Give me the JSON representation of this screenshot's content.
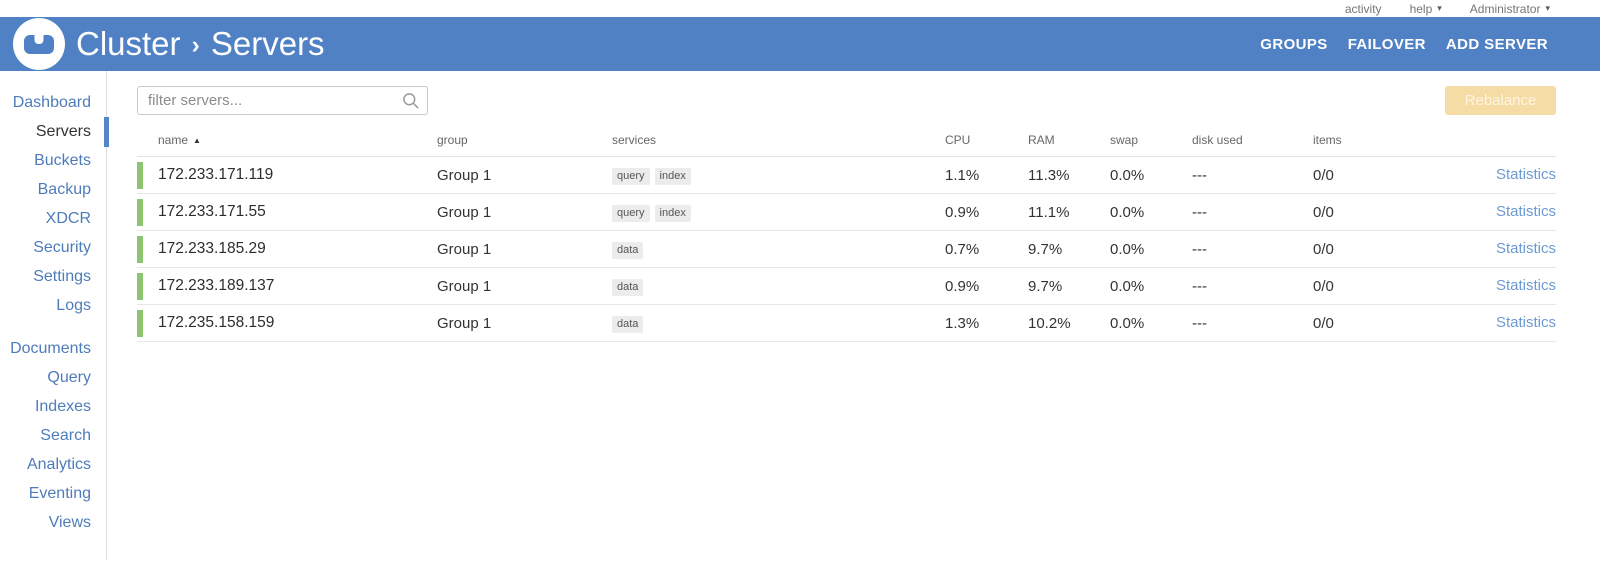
{
  "topbar": {
    "activity": "activity",
    "help": "help",
    "user": "Administrator",
    "caret": "▾"
  },
  "header": {
    "cluster": "Cluster",
    "separator": "›",
    "section": "Servers",
    "nav": [
      {
        "label": "GROUPS"
      },
      {
        "label": "FAILOVER"
      },
      {
        "label": "ADD SERVER"
      }
    ]
  },
  "sidebar": {
    "groups": [
      {
        "items": [
          {
            "label": "Dashboard",
            "active": false
          },
          {
            "label": "Servers",
            "active": true
          },
          {
            "label": "Buckets",
            "active": false
          },
          {
            "label": "Backup",
            "active": false
          },
          {
            "label": "XDCR",
            "active": false
          },
          {
            "label": "Security",
            "active": false
          },
          {
            "label": "Settings",
            "active": false
          },
          {
            "label": "Logs",
            "active": false
          }
        ]
      },
      {
        "items": [
          {
            "label": "Documents",
            "active": false
          },
          {
            "label": "Query",
            "active": false
          },
          {
            "label": "Indexes",
            "active": false
          },
          {
            "label": "Search",
            "active": false
          },
          {
            "label": "Analytics",
            "active": false
          },
          {
            "label": "Eventing",
            "active": false
          },
          {
            "label": "Views",
            "active": false
          }
        ]
      }
    ]
  },
  "toolbar": {
    "filter_placeholder": "filter servers...",
    "rebalance": "Rebalance"
  },
  "table": {
    "headers": {
      "name": "name",
      "group": "group",
      "services": "services",
      "cpu": "CPU",
      "ram": "RAM",
      "swap": "swap",
      "disk_used": "disk used",
      "items": "items"
    },
    "sort_indicator": "▲",
    "rows": [
      {
        "status": "healthy",
        "name": "172.233.171.119",
        "group": "Group 1",
        "services": [
          "query",
          "index"
        ],
        "cpu": "1.1%",
        "ram": "11.3%",
        "swap": "0.0%",
        "disk_used": "---",
        "items": "0/0",
        "statistics": "Statistics"
      },
      {
        "status": "healthy",
        "name": "172.233.171.55",
        "group": "Group 1",
        "services": [
          "query",
          "index"
        ],
        "cpu": "0.9%",
        "ram": "11.1%",
        "swap": "0.0%",
        "disk_used": "---",
        "items": "0/0",
        "statistics": "Statistics"
      },
      {
        "status": "healthy",
        "name": "172.233.185.29",
        "group": "Group 1",
        "services": [
          "data"
        ],
        "cpu": "0.7%",
        "ram": "9.7%",
        "swap": "0.0%",
        "disk_used": "---",
        "items": "0/0",
        "statistics": "Statistics"
      },
      {
        "status": "healthy",
        "name": "172.233.189.137",
        "group": "Group 1",
        "services": [
          "data"
        ],
        "cpu": "0.9%",
        "ram": "9.7%",
        "swap": "0.0%",
        "disk_used": "---",
        "items": "0/0",
        "statistics": "Statistics"
      },
      {
        "status": "healthy",
        "name": "172.235.158.159",
        "group": "Group 1",
        "services": [
          "data"
        ],
        "cpu": "1.3%",
        "ram": "10.2%",
        "swap": "0.0%",
        "disk_used": "---",
        "items": "0/0",
        "statistics": "Statistics"
      }
    ]
  },
  "colors": {
    "header_blue": "#4f81c4",
    "sidebar_link": "#4e7cba",
    "active_marker": "#5585c5",
    "healthy_green": "#8cc470",
    "statistics_link": "#6b9bd3",
    "rebalance_bg": "#f5dba4",
    "rebalance_text": "#fdf6e3"
  }
}
